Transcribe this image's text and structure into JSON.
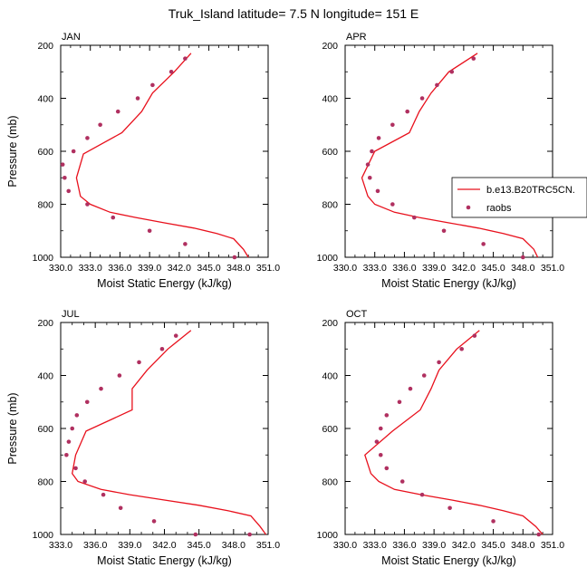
{
  "figure": {
    "title": "Truk_Island  latitude= 7.5 N longitude= 151 E",
    "legend": {
      "model_label": "b.e13.B20TRC5CN.",
      "obs_label": "raobs"
    },
    "colors": {
      "model_line": "#e8101c",
      "obs_marker": "#b03060",
      "axis": "#000000"
    }
  },
  "chart_data": [
    {
      "type": "line",
      "panel_label": "JAN",
      "xlabel": "Moist Static Energy (kJ/kg)",
      "ylabel": "Pressure (mb)",
      "xlim": [
        330,
        351
      ],
      "ylim": [
        1000,
        200
      ],
      "xticks": [
        "330.0",
        "333.0",
        "336.0",
        "339.0",
        "342.0",
        "345.0",
        "348.0",
        "351.0"
      ],
      "yticks": [
        "200",
        "400",
        "600",
        "800",
        "1000"
      ],
      "grid": false,
      "series": [
        {
          "name": "b.e13.B20TRC5CN.",
          "kind": "line",
          "x": [
            343.2,
            341.5,
            339.3,
            338.2,
            336.2,
            332.3,
            331.6,
            332.0,
            333.0,
            335.0,
            337.6,
            340.5,
            343.5,
            345.8,
            347.5,
            348.5,
            349.0
          ],
          "y": [
            230,
            300,
            380,
            450,
            530,
            610,
            700,
            770,
            800,
            830,
            850,
            870,
            890,
            910,
            930,
            970,
            1000
          ]
        },
        {
          "name": "raobs",
          "kind": "marker",
          "x": [
            342.6,
            341.2,
            339.3,
            337.8,
            335.8,
            334.0,
            332.7,
            331.3,
            330.2,
            330.4,
            330.8,
            332.7,
            335.3,
            339.0,
            342.6,
            347.6
          ],
          "y": [
            250,
            300,
            350,
            400,
            450,
            500,
            550,
            600,
            650,
            700,
            750,
            800,
            850,
            900,
            950,
            1000
          ]
        }
      ]
    },
    {
      "type": "line",
      "panel_label": "APR",
      "xlabel": "Moist Static Energy (kJ/kg)",
      "ylabel": "",
      "xlim": [
        330,
        351
      ],
      "ylim": [
        1000,
        200
      ],
      "xticks": [
        "330.0",
        "333.0",
        "336.0",
        "339.0",
        "342.0",
        "345.0",
        "348.0",
        "351.0"
      ],
      "yticks": [
        "200",
        "400",
        "600",
        "800",
        "1000"
      ],
      "grid": false,
      "series": [
        {
          "name": "b.e13.B20TRC5CN.",
          "kind": "line",
          "x": [
            343.4,
            340.5,
            338.7,
            337.5,
            336.5,
            333.0,
            331.7,
            332.3,
            333.0,
            335.0,
            337.5,
            340.5,
            343.5,
            346.0,
            348.0,
            349.1,
            349.5
          ],
          "y": [
            230,
            300,
            380,
            450,
            530,
            600,
            700,
            770,
            800,
            830,
            850,
            870,
            890,
            910,
            930,
            970,
            1000
          ]
        },
        {
          "name": "raobs",
          "kind": "marker",
          "x": [
            343.0,
            340.8,
            339.3,
            337.8,
            336.3,
            334.8,
            333.4,
            332.7,
            332.3,
            332.5,
            333.3,
            334.8,
            337.0,
            340.0,
            344.0,
            348.0
          ],
          "y": [
            250,
            300,
            350,
            400,
            450,
            500,
            550,
            600,
            650,
            700,
            750,
            800,
            850,
            900,
            950,
            1000
          ]
        }
      ]
    },
    {
      "type": "line",
      "panel_label": "JUL",
      "xlabel": "Moist Static Energy (kJ/kg)",
      "ylabel": "Pressure (mb)",
      "xlim": [
        333,
        351
      ],
      "ylim": [
        1000,
        200
      ],
      "xticks": [
        "333.0",
        "336.0",
        "339.0",
        "342.0",
        "345.0",
        "348.0",
        "351.0"
      ],
      "yticks": [
        "200",
        "400",
        "600",
        "800",
        "1000"
      ],
      "grid": false,
      "series": [
        {
          "name": "b.e13.B20TRC5CN.",
          "kind": "line",
          "x": [
            344.3,
            342.3,
            340.5,
            339.2,
            339.2,
            335.2,
            334.3,
            334.0,
            334.5,
            336.5,
            339.0,
            342.0,
            345.0,
            347.5,
            349.5,
            350.3,
            350.8
          ],
          "y": [
            230,
            300,
            380,
            450,
            530,
            610,
            700,
            770,
            800,
            830,
            850,
            870,
            890,
            910,
            930,
            970,
            1000
          ]
        },
        {
          "name": "raobs",
          "kind": "marker",
          "x": [
            343.0,
            341.8,
            339.8,
            338.1,
            336.5,
            335.3,
            334.4,
            334.0,
            333.7,
            333.5,
            334.3,
            335.1,
            336.7,
            338.2,
            341.1,
            344.7,
            349.4
          ],
          "y": [
            250,
            300,
            350,
            400,
            450,
            500,
            550,
            600,
            650,
            700,
            750,
            800,
            850,
            900,
            950,
            1000,
            1000
          ]
        }
      ]
    },
    {
      "type": "line",
      "panel_label": "OCT",
      "xlabel": "Moist Static Energy (kJ/kg)",
      "ylabel": "",
      "xlim": [
        330,
        351
      ],
      "ylim": [
        1000,
        200
      ],
      "xticks": [
        "330.0",
        "333.0",
        "336.0",
        "339.0",
        "342.0",
        "345.0",
        "348.0",
        "351.0"
      ],
      "yticks": [
        "200",
        "400",
        "600",
        "800",
        "1000"
      ],
      "grid": false,
      "series": [
        {
          "name": "b.e13.B20TRC5CN.",
          "kind": "line",
          "x": [
            343.6,
            341.3,
            339.5,
            338.7,
            337.6,
            334.8,
            332.0,
            332.6,
            333.4,
            335.0,
            337.7,
            340.8,
            343.6,
            346.0,
            348.0,
            349.3,
            350.0
          ],
          "y": [
            230,
            300,
            380,
            450,
            530,
            610,
            700,
            770,
            800,
            830,
            850,
            870,
            890,
            910,
            930,
            970,
            1000
          ]
        },
        {
          "name": "raobs",
          "kind": "marker",
          "x": [
            343.1,
            341.8,
            339.5,
            338.0,
            336.6,
            335.5,
            334.2,
            333.6,
            333.2,
            333.6,
            334.2,
            335.8,
            337.8,
            340.6,
            345.0,
            349.6
          ],
          "y": [
            250,
            300,
            350,
            400,
            450,
            500,
            550,
            600,
            650,
            700,
            750,
            800,
            850,
            900,
            950,
            1000
          ]
        }
      ]
    }
  ]
}
